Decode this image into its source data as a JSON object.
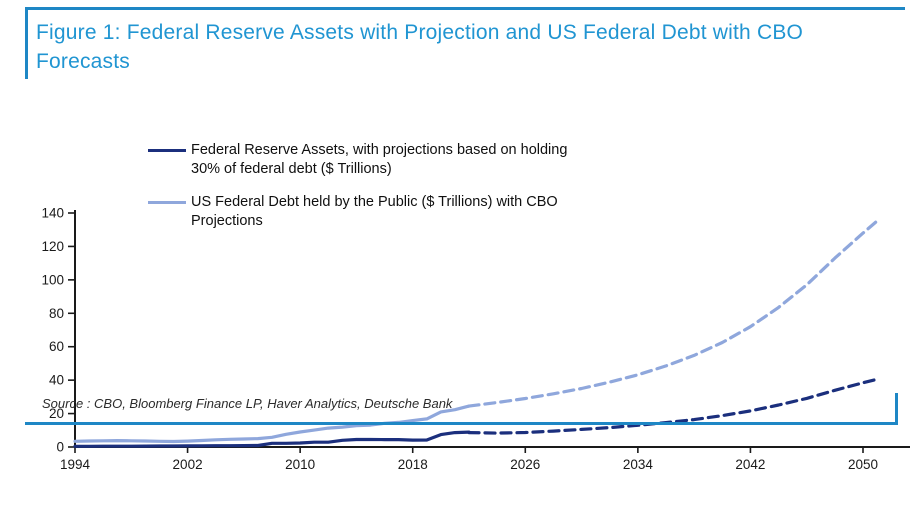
{
  "header": {
    "title": "Figure 1: Federal Reserve Assets with Projection and US Federal Debt with CBO Forecasts"
  },
  "legend": {
    "items": [
      {
        "label": "Federal Reserve Assets, with projections based on holding 30% of federal debt ($ Trillions)",
        "color": "#1B2F7D"
      },
      {
        "label": "US Federal Debt held by the Public ($ Trillions) with CBO Projections",
        "color": "#8FA7DC"
      }
    ]
  },
  "footer": {
    "source": "Source : CBO, Bloomberg Finance LP, Haver Analytics, Deutsche Bank"
  },
  "colors": {
    "accent_blue": "#2095D2",
    "border_blue": "#1E87C5",
    "fed_assets_navy": "#1B2F7D",
    "federal_debt_light_blue": "#8FA7DC",
    "axis": "#1a1a1a"
  },
  "chart_data": {
    "type": "line",
    "title": "Figure 1: Federal Reserve Assets with Projection and US Federal Debt with CBO Forecasts",
    "xlabel": "",
    "ylabel": "",
    "units": "$ Trillions",
    "xlim": [
      1994,
      2051
    ],
    "ylim": [
      0,
      140
    ],
    "x_ticks": [
      1994,
      2002,
      2010,
      2018,
      2026,
      2034,
      2042,
      2050
    ],
    "y_ticks": [
      0,
      20,
      40,
      60,
      80,
      100,
      120,
      140
    ],
    "grid": false,
    "legend_position": "upper-left-inside",
    "series": [
      {
        "id": "fed-assets-historical",
        "name": "Federal Reserve Assets (historical)",
        "color": "#1B2F7D",
        "style": "solid",
        "points": [
          [
            1994,
            0.4
          ],
          [
            1995,
            0.43
          ],
          [
            1996,
            0.45
          ],
          [
            1997,
            0.48
          ],
          [
            1998,
            0.5
          ],
          [
            1999,
            0.55
          ],
          [
            2000,
            0.6
          ],
          [
            2001,
            0.62
          ],
          [
            2002,
            0.65
          ],
          [
            2003,
            0.7
          ],
          [
            2004,
            0.75
          ],
          [
            2005,
            0.8
          ],
          [
            2006,
            0.85
          ],
          [
            2007,
            0.9
          ],
          [
            2008,
            2.2
          ],
          [
            2009,
            2.2
          ],
          [
            2010,
            2.4
          ],
          [
            2011,
            2.9
          ],
          [
            2012,
            2.9
          ],
          [
            2013,
            4.0
          ],
          [
            2014,
            4.5
          ],
          [
            2015,
            4.5
          ],
          [
            2016,
            4.45
          ],
          [
            2017,
            4.4
          ],
          [
            2018,
            4.1
          ],
          [
            2019,
            4.2
          ],
          [
            2020,
            7.4
          ],
          [
            2021,
            8.6
          ],
          [
            2022,
            8.9
          ]
        ]
      },
      {
        "id": "fed-assets-projection",
        "name": "Federal Reserve Assets projection (30% of federal debt)",
        "color": "#1B2F7D",
        "style": "dashed",
        "points": [
          [
            2022,
            8.6
          ],
          [
            2024,
            8.3
          ],
          [
            2026,
            8.7
          ],
          [
            2028,
            9.5
          ],
          [
            2030,
            10.5
          ],
          [
            2032,
            11.6
          ],
          [
            2034,
            13.0
          ],
          [
            2036,
            14.6
          ],
          [
            2038,
            16.4
          ],
          [
            2040,
            18.8
          ],
          [
            2042,
            21.6
          ],
          [
            2044,
            25.1
          ],
          [
            2046,
            29.1
          ],
          [
            2048,
            33.9
          ],
          [
            2050,
            38.4
          ],
          [
            2050.9,
            40.3
          ]
        ]
      },
      {
        "id": "federal-debt-historical",
        "name": "US Federal Debt held by the Public (historical)",
        "color": "#8FA7DC",
        "style": "solid",
        "points": [
          [
            1994,
            3.4
          ],
          [
            1995,
            3.6
          ],
          [
            1996,
            3.7
          ],
          [
            1997,
            3.8
          ],
          [
            1998,
            3.7
          ],
          [
            1999,
            3.6
          ],
          [
            2000,
            3.4
          ],
          [
            2001,
            3.3
          ],
          [
            2002,
            3.5
          ],
          [
            2003,
            3.9
          ],
          [
            2004,
            4.3
          ],
          [
            2005,
            4.6
          ],
          [
            2006,
            4.8
          ],
          [
            2007,
            5.0
          ],
          [
            2008,
            5.8
          ],
          [
            2009,
            7.6
          ],
          [
            2010,
            9.0
          ],
          [
            2011,
            10.1
          ],
          [
            2012,
            11.3
          ],
          [
            2013,
            11.9
          ],
          [
            2014,
            12.8
          ],
          [
            2015,
            13.1
          ],
          [
            2016,
            14.2
          ],
          [
            2017,
            14.7
          ],
          [
            2018,
            15.8
          ],
          [
            2019,
            16.8
          ],
          [
            2020,
            21.0
          ],
          [
            2021,
            22.3
          ],
          [
            2022,
            24.5
          ]
        ]
      },
      {
        "id": "federal-debt-projection",
        "name": "US Federal Debt held by the Public (CBO projection)",
        "color": "#8FA7DC",
        "style": "dashed",
        "points": [
          [
            2022,
            24.5
          ],
          [
            2024,
            26.6
          ],
          [
            2026,
            29.0
          ],
          [
            2028,
            31.8
          ],
          [
            2030,
            35.0
          ],
          [
            2032,
            38.8
          ],
          [
            2034,
            43.2
          ],
          [
            2036,
            48.5
          ],
          [
            2038,
            54.8
          ],
          [
            2040,
            62.5
          ],
          [
            2042,
            72.0
          ],
          [
            2044,
            83.5
          ],
          [
            2046,
            97.0
          ],
          [
            2048,
            113.0
          ],
          [
            2050,
            128.0
          ],
          [
            2050.9,
            134.5
          ]
        ]
      }
    ]
  }
}
